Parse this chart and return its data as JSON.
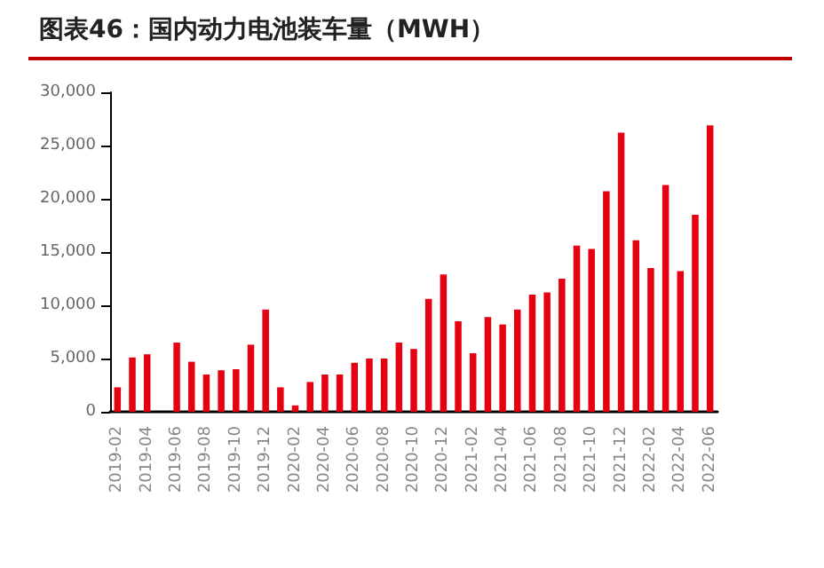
{
  "chart_data": {
    "type": "bar",
    "title": "图表46：国内动力电池装车量（MWH）",
    "categories": [
      "2019-02",
      null,
      "2019-04",
      null,
      "2019-06",
      null,
      "2019-08",
      null,
      "2019-10",
      null,
      "2019-12",
      null,
      "2020-02",
      null,
      "2020-04",
      null,
      "2020-06",
      null,
      "2020-08",
      null,
      "2020-10",
      null,
      "2020-12",
      null,
      "2021-02",
      null,
      "2021-04",
      null,
      "2021-06",
      null,
      "2021-08",
      null,
      "2021-10",
      null,
      "2021-12",
      null,
      "2022-02",
      null,
      "2022-04",
      null,
      "2022-06"
    ],
    "values": [
      2300,
      5100,
      5400,
      null,
      6500,
      4700,
      3500,
      3900,
      4000,
      6300,
      9600,
      2300,
      600,
      2800,
      3500,
      3500,
      4600,
      5000,
      5000,
      6500,
      5900,
      10600,
      12900,
      8500,
      5500,
      8900,
      8200,
      9600,
      11000,
      11200,
      12500,
      15600,
      15300,
      20700,
      26200,
      16100,
      13500,
      21300,
      13200,
      18500,
      26900
    ],
    "color": "#e60012",
    "ylim": [
      0,
      30000
    ],
    "yticks": [
      0,
      {
        "value": 5000,
        "label": "5,000"
      },
      {
        "value": 10000,
        "label": "10,000"
      },
      {
        "value": 15000,
        "label": "15,000"
      },
      {
        "value": 20000,
        "label": "20,000"
      },
      {
        "value": 25000,
        "label": "25,000"
      },
      {
        "value": 30000,
        "label": "30,000"
      }
    ],
    "grid": false
  }
}
